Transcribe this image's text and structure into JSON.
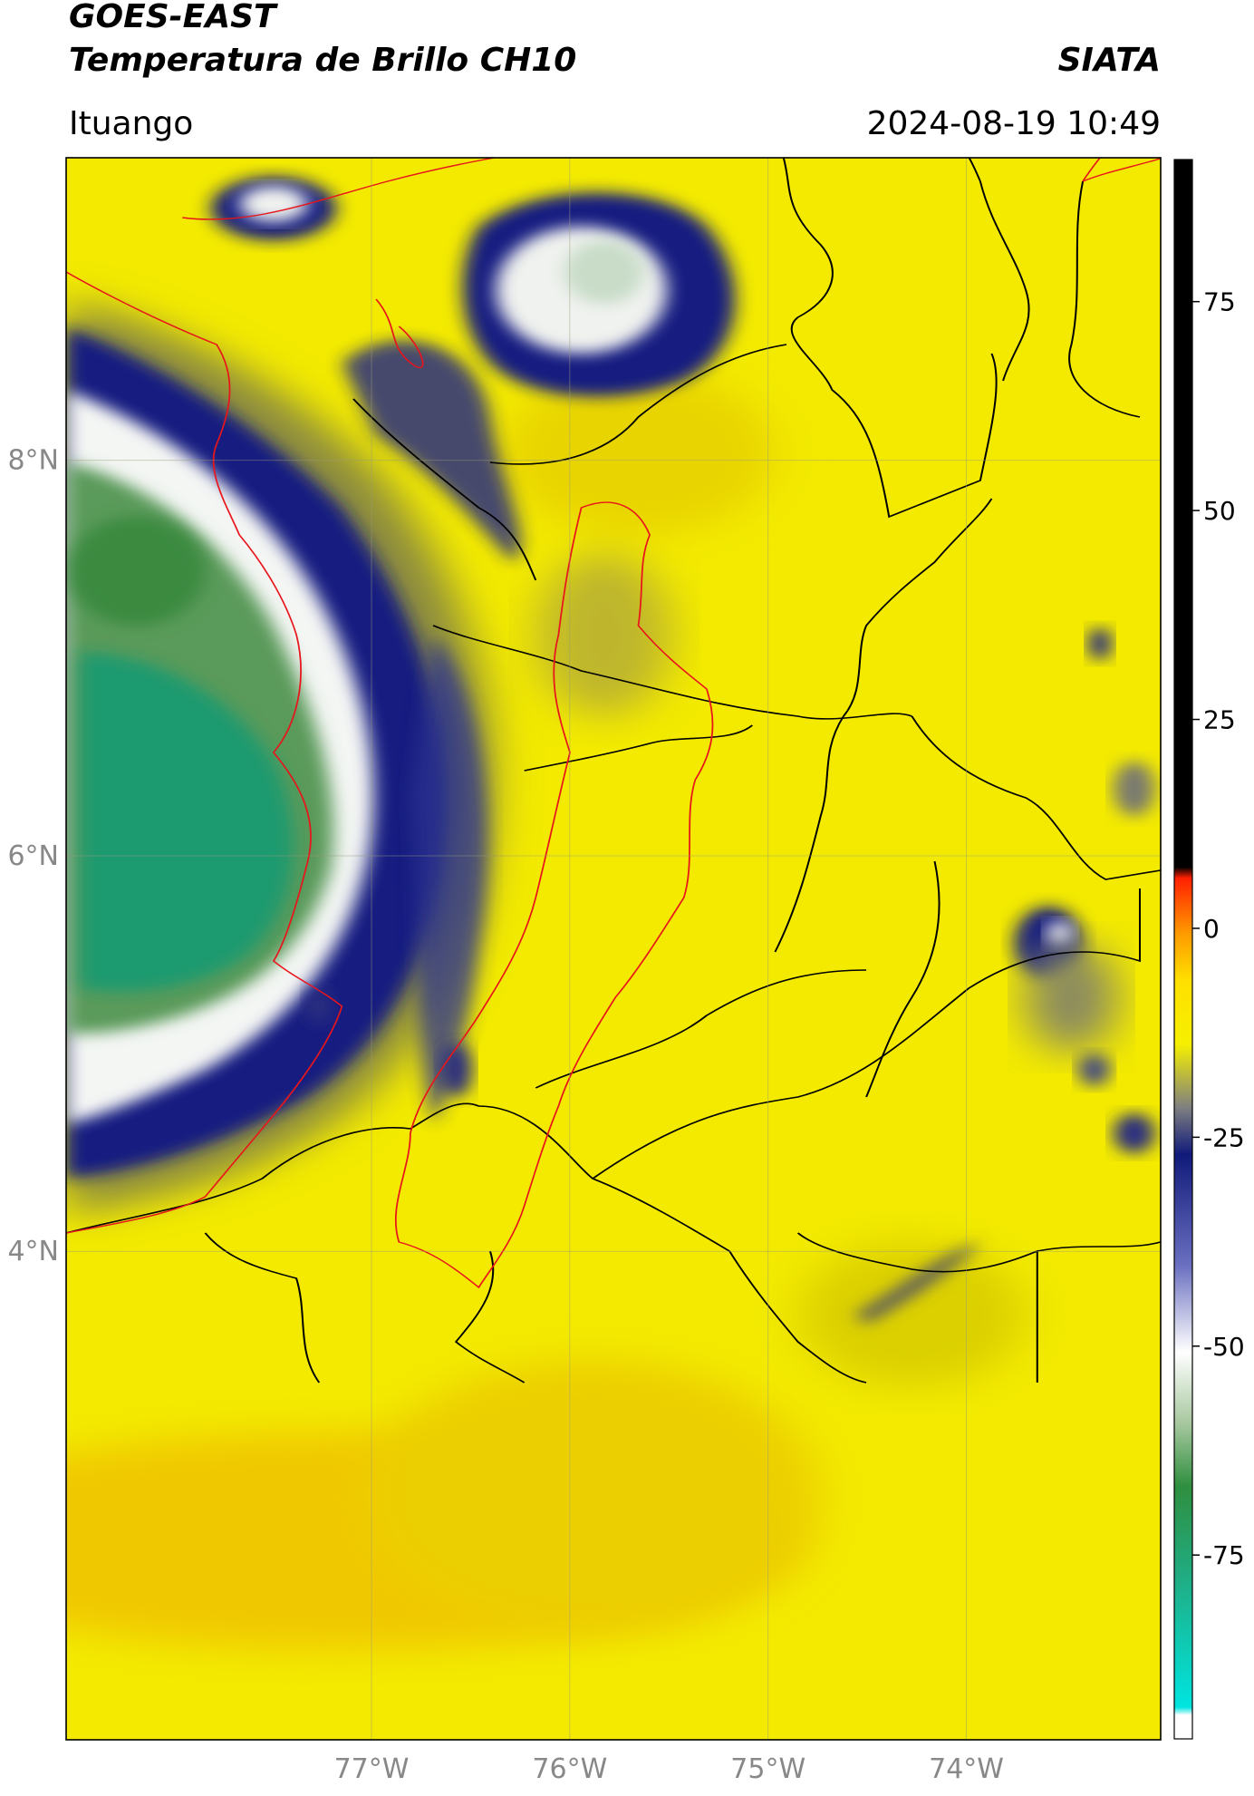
{
  "chart_data": {
    "type": "map",
    "title": "GOES-EAST",
    "subtitle": "Temperatura de Brillo CH10",
    "source": "SIATA",
    "location": "Ituango",
    "datetime": "2024-08-19 10:49",
    "xlim": [
      -78.54,
      -73.02
    ],
    "ylim": [
      1.53,
      9.53
    ],
    "xticks": [
      {
        "value": -77,
        "label": "77°W"
      },
      {
        "value": -76,
        "label": "76°W"
      },
      {
        "value": -75,
        "label": "75°W"
      },
      {
        "value": -74,
        "label": "74°W"
      }
    ],
    "yticks": [
      {
        "value": 4,
        "label": "4°N"
      },
      {
        "value": 6,
        "label": "6°N"
      },
      {
        "value": 8,
        "label": "8°N"
      }
    ],
    "grid": true,
    "colorbar": {
      "lim": [
        -97,
        92
      ],
      "ticks": [
        -75,
        -50,
        -25,
        0,
        25,
        50,
        75
      ]
    }
  }
}
